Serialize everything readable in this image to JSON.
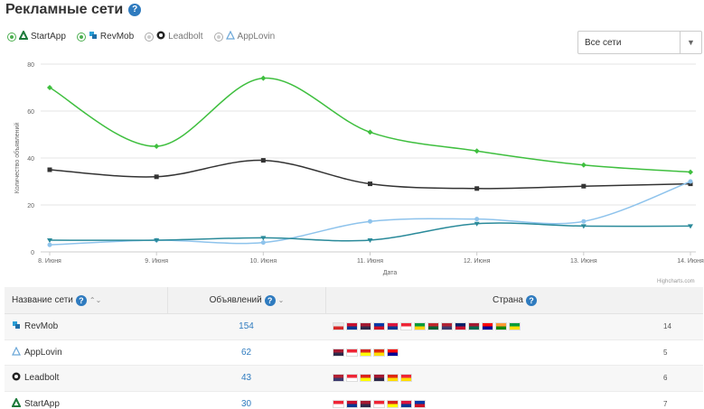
{
  "header": {
    "title": "Рекламные сети"
  },
  "legend": [
    {
      "label": "StartApp",
      "active": true,
      "icon": "startapp-icon",
      "color": "#333333"
    },
    {
      "label": "RevMob",
      "active": true,
      "icon": "revmob-icon",
      "color": "#3fbf3f"
    },
    {
      "label": "Leadbolt",
      "active": false,
      "icon": "leadbolt-icon",
      "color": "#2a8a9a"
    },
    {
      "label": "AppLovin",
      "active": false,
      "icon": "applovin-icon",
      "color": "#7fb6e0"
    }
  ],
  "filter": {
    "selected": "Все сети"
  },
  "chart_data": {
    "type": "line",
    "xlabel": "Дата",
    "ylabel": "Количество объявлений",
    "ylim": [
      0,
      80
    ],
    "yticks": [
      0,
      20,
      40,
      60,
      80
    ],
    "categories": [
      "8. Июня",
      "9. Июня",
      "10. Июня",
      "11. Июня",
      "12. Июня",
      "13. Июня",
      "14. Июня"
    ],
    "grid": true,
    "series": [
      {
        "name": "RevMob",
        "color": "#3fbf3f",
        "values": [
          70,
          45,
          74,
          51,
          43,
          37,
          34
        ]
      },
      {
        "name": "StartApp",
        "color": "#333333",
        "values": [
          35,
          32,
          39,
          29,
          27,
          28,
          29
        ]
      },
      {
        "name": "AppLovin",
        "color": "#8ec3ec",
        "values": [
          3,
          5,
          4,
          13,
          14,
          13,
          30
        ]
      },
      {
        "name": "Leadbolt",
        "color": "#2a8a9a",
        "values": [
          5,
          5,
          6,
          5,
          12,
          11,
          11
        ]
      }
    ],
    "credits": "Highcharts.com"
  },
  "table": {
    "headers": {
      "name": "Название сети",
      "ads": "Объявлений",
      "country": "Страна"
    },
    "rows": [
      {
        "name": "RevMob",
        "icon": "revmob-icon",
        "ads": "154",
        "count": "14",
        "flags": [
          "#e8e8e8|#d62828",
          "#c8102e|#003893",
          "#a51931|#2d2a4a",
          "#0038a8|#ce1126",
          "#dc143c|#003893",
          "#ee2536|#ffffff",
          "#009b3a|#fed100",
          "#c1272d|#006233",
          "#b22234|#3c3b6e",
          "#012169|#c8102e",
          "#a51931|#006a4e",
          "#fe0000|#000095",
          "#ff9933|#138808",
          "#009c3b|#ffdf00"
        ]
      },
      {
        "name": "AppLovin",
        "icon": "applovin-icon",
        "ads": "62",
        "count": "5",
        "flags": [
          "#a51931|#2d2a4a",
          "#ee2536|#ffffff",
          "#da251d|#ffff00",
          "#de2910|#ffde00",
          "#fe0000|#000095"
        ]
      },
      {
        "name": "Leadbolt",
        "icon": "leadbolt-icon",
        "ads": "43",
        "count": "6",
        "flags": [
          "#b22234|#3c3b6e",
          "#ee2536|#ffffff",
          "#da251d|#ffff00",
          "#a51931|#2d2a4a",
          "#de2910|#ffde00",
          "#ee2536|#ffde00"
        ]
      },
      {
        "name": "StartApp",
        "icon": "startapp-icon",
        "ads": "30",
        "count": "7",
        "flags": [
          "#ee2536|#ffffff",
          "#c8102e|#003893",
          "#a51931|#2d2a4a",
          "#ee2536|#ffffff",
          "#da251d|#ffff00",
          "#dc143c|#003893",
          "#0038a8|#ce1126"
        ]
      }
    ]
  }
}
